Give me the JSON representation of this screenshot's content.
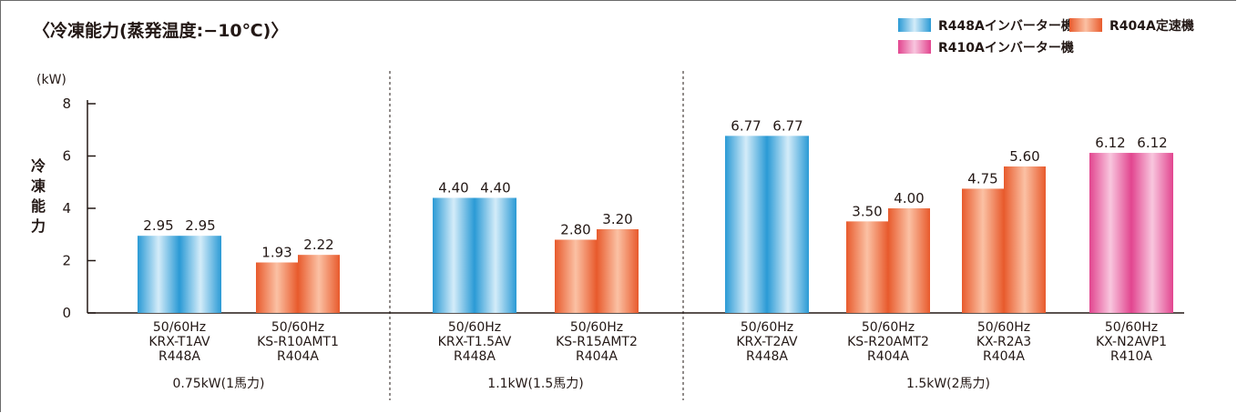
{
  "chart_data": {
    "type": "bar",
    "title": "〈冷凍能力(蒸発温度:−10℃)〉",
    "unit": "(kW)",
    "ylabel": "冷凍能力",
    "ylim": [
      0,
      8
    ],
    "yticks": [
      "0",
      "2",
      "4",
      "6",
      "8"
    ],
    "legend": [
      {
        "label": "R448Aインバーター機",
        "style": "blue"
      },
      {
        "label": "R404A定速機",
        "style": "orange"
      },
      {
        "label": "R410Aインバーター機",
        "style": "pink"
      }
    ],
    "colors": {
      "blue": {
        "edge": "#2a9ad5",
        "mid": "#d4ecf9"
      },
      "orange": {
        "edge": "#e85a2c",
        "mid": "#fbc1a4"
      },
      "pink": {
        "edge": "#e2458f",
        "mid": "#f8c6de"
      }
    },
    "groups": [
      {
        "label": "0.75kW(1馬力)",
        "models": [
          {
            "hz": "50/60Hz",
            "name": "KRX-T1AV",
            "ref": "R448A",
            "style": "blue",
            "values": [
              2.95,
              2.95
            ],
            "labels": [
              "2.95",
              "2.95"
            ]
          },
          {
            "hz": "50/60Hz",
            "name": "KS-R10AMT1",
            "ref": "R404A",
            "style": "orange",
            "values": [
              1.93,
              2.22
            ],
            "labels": [
              "1.93",
              "2.22"
            ]
          }
        ]
      },
      {
        "label": "1.1kW(1.5馬力)",
        "models": [
          {
            "hz": "50/60Hz",
            "name": "KRX-T1.5AV",
            "ref": "R448A",
            "style": "blue",
            "values": [
              4.4,
              4.4
            ],
            "labels": [
              "4.40",
              "4.40"
            ]
          },
          {
            "hz": "50/60Hz",
            "name": "KS-R15AMT2",
            "ref": "R404A",
            "style": "orange",
            "values": [
              2.8,
              3.2
            ],
            "labels": [
              "2.80",
              "3.20"
            ]
          }
        ]
      },
      {
        "label": "1.5kW(2馬力)",
        "models": [
          {
            "hz": "50/60Hz",
            "name": "KRX-T2AV",
            "ref": "R448A",
            "style": "blue",
            "values": [
              6.77,
              6.77
            ],
            "labels": [
              "6.77",
              "6.77"
            ]
          },
          {
            "hz": "50/60Hz",
            "name": "KS-R20AMT2",
            "ref": "R404A",
            "style": "orange",
            "values": [
              3.5,
              4.0
            ],
            "labels": [
              "3.50",
              "4.00"
            ]
          },
          {
            "hz": "50/60Hz",
            "name": "KX-R2A3",
            "ref": "R404A",
            "style": "orange",
            "values": [
              4.75,
              5.6
            ],
            "labels": [
              "4.75",
              "5.60"
            ]
          },
          {
            "hz": "50/60Hz",
            "name": "KX-N2AVP1",
            "ref": "R410A",
            "style": "pink",
            "values": [
              6.12,
              6.12
            ],
            "labels": [
              "6.12",
              "6.12"
            ]
          }
        ]
      }
    ]
  }
}
